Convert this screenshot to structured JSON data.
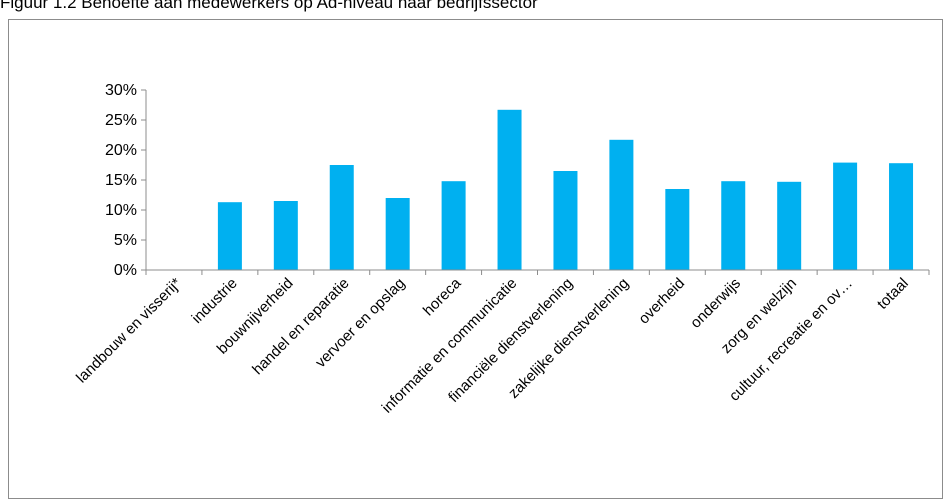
{
  "figure_title": "Figuur 1.2 Behoefte aan medewerkers op Ad-niveau naar bedrijfssector",
  "chart_data": {
    "type": "bar",
    "title": "",
    "xlabel": "",
    "ylabel": "",
    "ylim": [
      0,
      0.3
    ],
    "yticks": [
      0,
      0.05,
      0.1,
      0.15,
      0.2,
      0.25,
      0.3
    ],
    "ytick_labels": [
      "0%",
      "5%",
      "10%",
      "15%",
      "20%",
      "25%",
      "30%"
    ],
    "categories": [
      "landbouw en visserij*",
      "industrie",
      "bouwnijverheid",
      "handel en reparatie",
      "vervoer en opslag",
      "horeca",
      "informatie en communicatie",
      "financiële dienstverlening",
      "zakelijke dienstverlening",
      "overheid",
      "onderwijs",
      "zorg en welzijn",
      "cultuur, recreatie en ov…",
      "totaal"
    ],
    "values": [
      0,
      0.113,
      0.115,
      0.175,
      0.12,
      0.148,
      0.267,
      0.165,
      0.217,
      0.135,
      0.148,
      0.147,
      0.179,
      0.178
    ],
    "bar_color": "#00b0f0",
    "grid": false,
    "legend": "none"
  }
}
